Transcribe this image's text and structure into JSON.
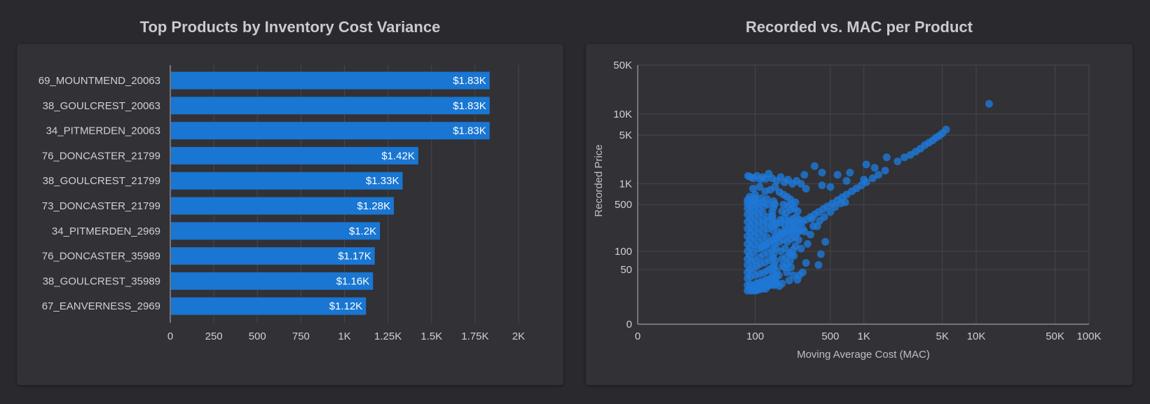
{
  "colors": {
    "bar": "#1976d2",
    "point": "#1f78d6",
    "grid": "#46464c",
    "axis": "#8a8a90"
  },
  "chart_data": [
    {
      "type": "bar",
      "orientation": "horizontal",
      "title": "Top Products by Inventory Cost Variance",
      "categories": [
        "69_MOUNTMEND_20063",
        "38_GOULCREST_20063",
        "34_PITMERDEN_20063",
        "76_DONCASTER_21799",
        "38_GOULCREST_21799",
        "73_DONCASTER_21799",
        "34_PITMERDEN_2969",
        "76_DONCASTER_35989",
        "38_GOULCREST_35989",
        "67_EANVERNESS_2969"
      ],
      "values": [
        1830,
        1830,
        1830,
        1420,
        1330,
        1280,
        1200,
        1170,
        1160,
        1120
      ],
      "data_labels": [
        "$1.83K",
        "$1.83K",
        "$1.83K",
        "$1.42K",
        "$1.33K",
        "$1.28K",
        "$1.2K",
        "$1.17K",
        "$1.16K",
        "$1.12K"
      ],
      "xlim": [
        0,
        2000
      ],
      "x_ticks": [
        0,
        250,
        500,
        750,
        1000,
        1250,
        1500,
        1750,
        2000
      ],
      "x_tick_labels": [
        "0",
        "250",
        "500",
        "750",
        "1K",
        "1.25K",
        "1.5K",
        "1.75K",
        "2K"
      ],
      "grid": true
    },
    {
      "type": "scatter",
      "title": "Recorded vs. MAC per Product",
      "xlabel": "Moving Average Cost (MAC)",
      "ylabel": "Recorded Price",
      "x_scale": "symlog",
      "y_scale": "symlog",
      "x_ticks": [
        0,
        100,
        500,
        1000,
        5000,
        10000,
        50000,
        100000
      ],
      "x_tick_labels": [
        "0",
        "100",
        "500",
        "1K",
        "5K",
        "10K",
        "50K",
        "100K"
      ],
      "y_ticks": [
        0,
        50,
        100,
        500,
        1000,
        5000,
        10000,
        50000
      ],
      "y_tick_labels": [
        "0",
        "50",
        "100",
        "500",
        "1K",
        "5K",
        "10K",
        "50K"
      ],
      "grid": true,
      "points": [
        [
          13000,
          14000
        ],
        [
          5400,
          6000
        ],
        [
          5000,
          5300
        ],
        [
          4700,
          4900
        ],
        [
          4400,
          4600
        ],
        [
          4100,
          4200
        ],
        [
          3800,
          3900
        ],
        [
          3500,
          3600
        ],
        [
          3200,
          3200
        ],
        [
          2900,
          2900
        ],
        [
          2600,
          2600
        ],
        [
          2300,
          2400
        ],
        [
          2000,
          2100
        ],
        [
          1550,
          1550
        ],
        [
          1350,
          1350
        ],
        [
          1200,
          1200
        ],
        [
          1050,
          1050
        ],
        [
          950,
          950
        ],
        [
          860,
          860
        ],
        [
          780,
          780
        ],
        [
          700,
          700
        ],
        [
          640,
          640
        ],
        [
          580,
          580
        ],
        [
          520,
          520
        ],
        [
          470,
          470
        ],
        [
          430,
          430
        ],
        [
          390,
          390
        ],
        [
          360,
          360
        ],
        [
          330,
          330
        ],
        [
          300,
          300
        ],
        [
          280,
          280
        ],
        [
          260,
          260
        ],
        [
          240,
          240
        ],
        [
          220,
          220
        ],
        [
          200,
          200
        ],
        [
          185,
          185
        ],
        [
          170,
          170
        ],
        [
          160,
          160
        ],
        [
          150,
          150
        ],
        [
          140,
          140
        ],
        [
          130,
          130
        ],
        [
          125,
          125
        ],
        [
          120,
          120
        ],
        [
          115,
          115
        ],
        [
          1600,
          2400
        ],
        [
          1050,
          1900
        ],
        [
          1250,
          1700
        ],
        [
          750,
          1450
        ],
        [
          580,
          1350
        ],
        [
          420,
          1450
        ],
        [
          360,
          1800
        ],
        [
          290,
          1350
        ],
        [
          700,
          1100
        ],
        [
          500,
          900
        ],
        [
          300,
          850
        ],
        [
          420,
          950
        ],
        [
          1000,
          1150
        ],
        [
          340,
          310
        ],
        [
          380,
          240
        ],
        [
          450,
          140
        ],
        [
          410,
          90
        ],
        [
          390,
          60
        ],
        [
          300,
          65
        ],
        [
          280,
          45
        ],
        [
          260,
          40
        ],
        [
          250,
          33
        ],
        [
          230,
          40
        ],
        [
          210,
          32
        ],
        [
          200,
          45
        ],
        [
          180,
          28
        ],
        [
          170,
          25
        ],
        [
          160,
          38
        ],
        [
          190,
          55
        ],
        [
          220,
          90
        ],
        [
          240,
          120
        ],
        [
          270,
          110
        ],
        [
          310,
          130
        ],
        [
          330,
          180
        ],
        [
          290,
          200
        ],
        [
          350,
          240
        ],
        [
          400,
          290
        ],
        [
          440,
          330
        ],
        [
          500,
          390
        ],
        [
          550,
          460
        ],
        [
          620,
          520
        ],
        [
          680,
          540
        ],
        [
          85,
          1300
        ],
        [
          90,
          1250
        ],
        [
          96,
          1200
        ],
        [
          104,
          1300
        ],
        [
          112,
          1150
        ],
        [
          118,
          1250
        ],
        [
          126,
          1180
        ],
        [
          135,
          1400
        ],
        [
          145,
          1200
        ],
        [
          160,
          1100
        ],
        [
          175,
          1250
        ],
        [
          190,
          1050
        ],
        [
          205,
          1150
        ],
        [
          225,
          1000
        ],
        [
          245,
          1100
        ],
        [
          270,
          1000
        ],
        [
          95,
          850
        ],
        [
          110,
          900
        ],
        [
          125,
          780
        ],
        [
          140,
          820
        ],
        [
          155,
          900
        ],
        [
          170,
          760
        ],
        [
          185,
          700
        ],
        [
          200,
          650
        ],
        [
          215,
          600
        ],
        [
          88,
          650
        ],
        [
          100,
          700
        ],
        [
          115,
          620
        ],
        [
          130,
          600
        ],
        [
          150,
          560
        ],
        [
          84,
          20
        ],
        [
          88,
          22
        ],
        [
          92,
          20
        ],
        [
          96,
          21
        ],
        [
          100,
          20
        ],
        [
          104,
          22
        ],
        [
          108,
          21
        ],
        [
          112,
          23
        ],
        [
          116,
          22
        ],
        [
          120,
          24
        ],
        [
          126,
          22
        ],
        [
          132,
          25
        ],
        [
          138,
          26
        ],
        [
          145,
          27
        ],
        [
          152,
          26
        ],
        [
          160,
          28
        ],
        [
          84,
          26
        ],
        [
          90,
          27
        ],
        [
          96,
          25
        ],
        [
          102,
          28
        ],
        [
          108,
          29
        ],
        [
          114,
          30
        ],
        [
          120,
          31
        ],
        [
          128,
          33
        ],
        [
          136,
          34
        ],
        [
          144,
          36
        ],
        [
          156,
          38
        ],
        [
          168,
          40
        ],
        [
          84,
          35
        ],
        [
          90,
          38
        ],
        [
          100,
          40
        ],
        [
          110,
          42
        ],
        [
          120,
          44
        ],
        [
          130,
          48
        ],
        [
          140,
          52
        ],
        [
          150,
          55
        ],
        [
          84,
          45
        ],
        [
          88,
          50
        ],
        [
          96,
          52
        ],
        [
          104,
          58
        ],
        [
          112,
          62
        ],
        [
          124,
          66
        ],
        [
          136,
          72
        ],
        [
          148,
          78
        ],
        [
          84,
          60
        ],
        [
          92,
          68
        ],
        [
          100,
          72
        ],
        [
          110,
          80
        ],
        [
          120,
          88
        ],
        [
          132,
          95
        ],
        [
          146,
          105
        ],
        [
          84,
          75
        ],
        [
          88,
          85
        ],
        [
          96,
          95
        ],
        [
          106,
          108
        ],
        [
          118,
          118
        ],
        [
          128,
          125
        ],
        [
          84,
          100
        ],
        [
          90,
          115
        ],
        [
          98,
          128
        ],
        [
          108,
          140
        ],
        [
          118,
          155
        ],
        [
          130,
          165
        ],
        [
          84,
          130
        ],
        [
          90,
          150
        ],
        [
          98,
          165
        ],
        [
          108,
          185
        ],
        [
          120,
          200
        ],
        [
          132,
          220
        ],
        [
          144,
          240
        ],
        [
          84,
          170
        ],
        [
          90,
          190
        ],
        [
          98,
          210
        ],
        [
          108,
          230
        ],
        [
          120,
          255
        ],
        [
          132,
          270
        ],
        [
          84,
          220
        ],
        [
          90,
          240
        ],
        [
          98,
          265
        ],
        [
          108,
          285
        ],
        [
          120,
          300
        ],
        [
          132,
          330
        ],
        [
          146,
          350
        ],
        [
          84,
          280
        ],
        [
          90,
          310
        ],
        [
          98,
          340
        ],
        [
          108,
          360
        ],
        [
          118,
          380
        ],
        [
          84,
          360
        ],
        [
          90,
          390
        ],
        [
          98,
          420
        ],
        [
          108,
          440
        ],
        [
          120,
          470
        ],
        [
          132,
          500
        ],
        [
          84,
          440
        ],
        [
          90,
          470
        ],
        [
          98,
          500
        ],
        [
          108,
          520
        ],
        [
          118,
          540
        ],
        [
          84,
          520
        ],
        [
          90,
          540
        ],
        [
          100,
          560
        ],
        [
          84,
          580
        ],
        [
          92,
          600
        ],
        [
          100,
          620
        ],
        [
          165,
          200
        ],
        [
          178,
          190
        ],
        [
          192,
          210
        ],
        [
          205,
          180
        ],
        [
          218,
          200
        ],
        [
          232,
          215
        ],
        [
          248,
          190
        ],
        [
          262,
          205
        ],
        [
          280,
          220
        ],
        [
          170,
          140
        ],
        [
          186,
          150
        ],
        [
          202,
          140
        ],
        [
          220,
          155
        ],
        [
          238,
          165
        ],
        [
          256,
          150
        ],
        [
          175,
          100
        ],
        [
          192,
          110
        ],
        [
          210,
          95
        ],
        [
          228,
          105
        ],
        [
          180,
          75
        ],
        [
          196,
          80
        ],
        [
          214,
          70
        ],
        [
          232,
          85
        ],
        [
          182,
          58
        ],
        [
          200,
          62
        ],
        [
          218,
          55
        ],
        [
          174,
          300
        ],
        [
          190,
          320
        ],
        [
          208,
          290
        ],
        [
          226,
          310
        ],
        [
          244,
          330
        ],
        [
          262,
          300
        ],
        [
          180,
          400
        ],
        [
          198,
          380
        ],
        [
          216,
          420
        ],
        [
          234,
          440
        ],
        [
          252,
          400
        ],
        [
          186,
          500
        ],
        [
          204,
          480
        ],
        [
          222,
          520
        ],
        [
          240,
          540
        ],
        [
          160,
          260
        ],
        [
          176,
          270
        ],
        [
          192,
          250
        ],
        [
          210,
          260
        ],
        [
          228,
          275
        ],
        [
          146,
          320
        ],
        [
          150,
          280
        ],
        [
          154,
          250
        ],
        [
          148,
          210
        ],
        [
          156,
          170
        ],
        [
          152,
          130
        ],
        [
          158,
          110
        ],
        [
          150,
          90
        ],
        [
          156,
          70
        ],
        [
          152,
          60
        ],
        [
          160,
          48
        ],
        [
          148,
          44
        ],
        [
          154,
          34
        ],
        [
          158,
          30
        ],
        [
          146,
          400
        ],
        [
          150,
          460
        ],
        [
          154,
          510
        ]
      ]
    }
  ]
}
